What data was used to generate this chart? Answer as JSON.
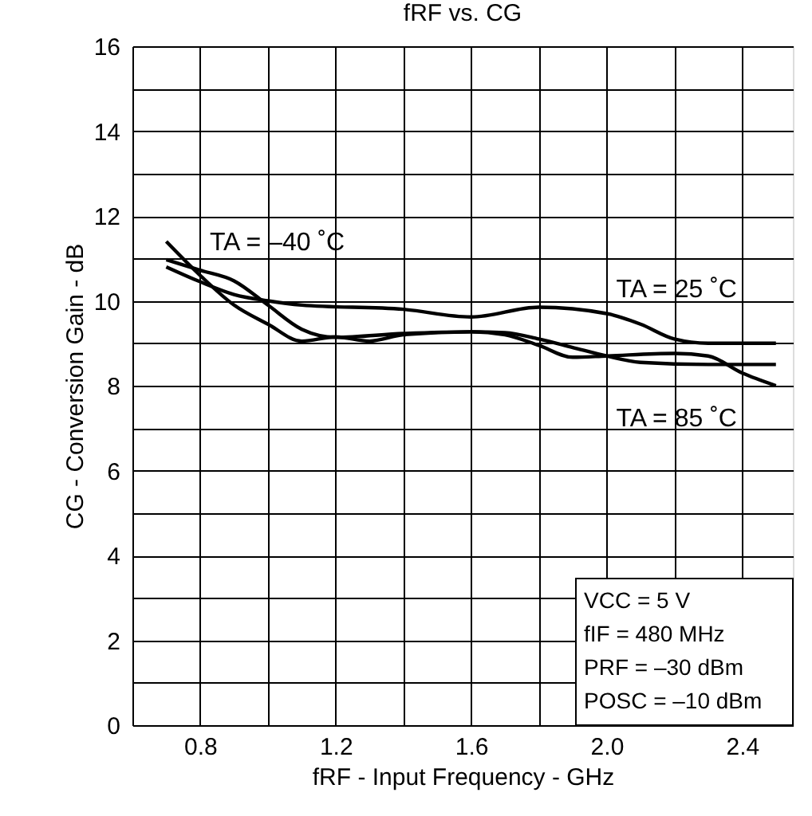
{
  "chart_data": {
    "type": "line",
    "title": "fRF vs. CG",
    "xlabel": "fRF - Input Frequency - GHz",
    "ylabel": "CG - Conversion Gain - dB",
    "xlim": [
      0.6,
      2.55
    ],
    "ylim": [
      0,
      16
    ],
    "xticks": [
      {
        "value": 0.6,
        "label": null
      },
      0.8,
      {
        "value": 1.0,
        "label": null
      },
      1.2,
      {
        "value": 1.4,
        "label": null
      },
      1.6,
      {
        "value": 1.8,
        "label": null
      },
      {
        "value": 2.0,
        "label": "2.0"
      },
      {
        "value": 2.2,
        "label": null
      },
      2.4
    ],
    "yticks": [
      0,
      {
        "value": 1,
        "label": null
      },
      2,
      {
        "value": 3,
        "label": null
      },
      4,
      {
        "value": 5,
        "label": null
      },
      6,
      {
        "value": 7,
        "label": null
      },
      8,
      {
        "value": 9,
        "label": null
      },
      10,
      {
        "value": 11,
        "label": null
      },
      12,
      {
        "value": 13,
        "label": null
      },
      14,
      {
        "value": 15,
        "label": null
      },
      16
    ],
    "grid": true,
    "marker": "none",
    "line_style": "solid",
    "series": [
      {
        "name": "TA = –40 ˚C",
        "color": "#000000",
        "x": [
          0.7,
          0.8,
          0.9,
          1.0,
          1.1,
          1.2,
          1.3,
          1.4,
          1.6,
          1.7,
          1.8,
          1.9,
          2.0,
          2.1,
          2.3,
          2.5
        ],
        "values": [
          11.4,
          10.6,
          9.9,
          9.45,
          9.05,
          9.15,
          9.05,
          9.2,
          9.27,
          9.25,
          9.1,
          8.9,
          8.7,
          8.55,
          8.5,
          8.5
        ]
      },
      {
        "name": "TA = 25 ˚C",
        "color": "#000000",
        "x": [
          0.7,
          0.8,
          0.9,
          1.0,
          1.1,
          1.4,
          1.6,
          1.8,
          2.0,
          2.1,
          2.2,
          2.3,
          2.5
        ],
        "values": [
          10.8,
          10.45,
          10.15,
          10.0,
          9.9,
          9.8,
          9.62,
          9.85,
          9.7,
          9.45,
          9.1,
          9.0,
          9.0
        ]
      },
      {
        "name": "TA = 85 ˚C",
        "color": "#000000",
        "x": [
          0.7,
          0.8,
          0.9,
          1.0,
          1.1,
          1.2,
          1.4,
          1.6,
          1.7,
          1.8,
          1.9,
          2.0,
          2.2,
          2.3,
          2.4,
          2.5
        ],
        "values": [
          10.97,
          10.72,
          10.47,
          9.9,
          9.33,
          9.14,
          9.23,
          9.27,
          9.2,
          8.95,
          8.67,
          8.7,
          8.76,
          8.7,
          8.3,
          8.0
        ]
      }
    ],
    "annotations": [
      "VCC = 5 V",
      "fIF = 480 MHz",
      "PRF = –30 dBm",
      "POSC = –10 dBm"
    ]
  }
}
